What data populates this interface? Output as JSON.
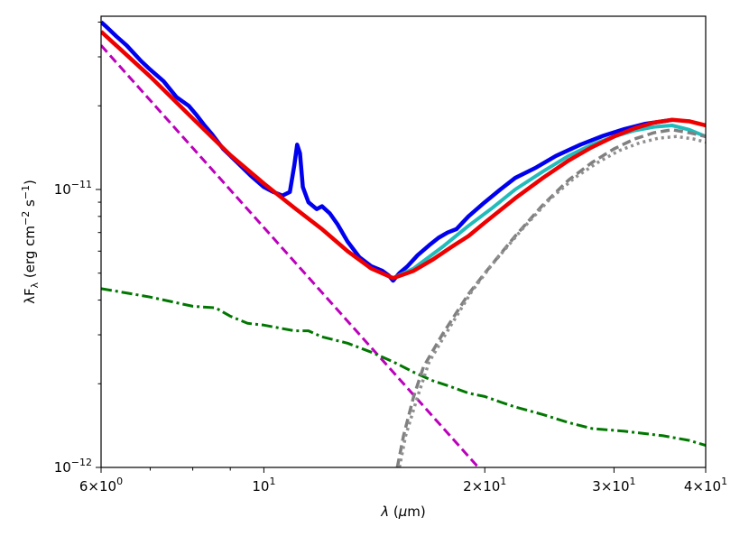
{
  "chart_data": {
    "type": "line",
    "title": "",
    "xlabel": "λ (μm)",
    "ylabel": "λF_λ (erg cm^-2 s^-1)",
    "x_scale": "log",
    "y_scale": "log",
    "xlim": [
      6,
      40
    ],
    "ylim": [
      1e-12,
      4.2e-11
    ],
    "grid": false,
    "legend": "none",
    "x_ticks": [
      {
        "value": 6,
        "mantissa": "6×10",
        "exponent": "0"
      },
      {
        "value": 10,
        "mantissa": "10",
        "exponent": "1"
      },
      {
        "value": 20,
        "mantissa": "2×10",
        "exponent": "1"
      },
      {
        "value": 30,
        "mantissa": "3×10",
        "exponent": "1"
      },
      {
        "value": 40,
        "mantissa": "4×10",
        "exponent": "1"
      }
    ],
    "y_ticks": [
      {
        "value": 1e-12,
        "mantissa": "10",
        "exponent": "−12"
      },
      {
        "value": 1e-11,
        "mantissa": "10",
        "exponent": "−11"
      }
    ],
    "series": [
      {
        "color": "#0000ee",
        "style": "solid",
        "width": 4.5,
        "points": [
          [
            6.0,
            4e-11
          ],
          [
            6.1,
            3.85e-11
          ],
          [
            6.3,
            3.55e-11
          ],
          [
            6.5,
            3.3e-11
          ],
          [
            6.8,
            2.9e-11
          ],
          [
            7.0,
            2.7e-11
          ],
          [
            7.3,
            2.45e-11
          ],
          [
            7.6,
            2.15e-11
          ],
          [
            7.9,
            2e-11
          ],
          [
            8.1,
            1.85e-11
          ],
          [
            8.3,
            1.7e-11
          ],
          [
            8.5,
            1.58e-11
          ],
          [
            8.8,
            1.4e-11
          ],
          [
            9.2,
            1.25e-11
          ],
          [
            9.6,
            1.12e-11
          ],
          [
            10.0,
            1.02e-11
          ],
          [
            10.3,
            9.8e-12
          ],
          [
            10.6,
            9.5e-12
          ],
          [
            10.85,
            9.8e-12
          ],
          [
            11.0,
            1.22e-11
          ],
          [
            11.1,
            1.45e-11
          ],
          [
            11.2,
            1.35e-11
          ],
          [
            11.3,
            1.02e-11
          ],
          [
            11.5,
            9e-12
          ],
          [
            11.8,
            8.5e-12
          ],
          [
            12.0,
            8.7e-12
          ],
          [
            12.3,
            8.2e-12
          ],
          [
            12.6,
            7.5e-12
          ],
          [
            13.0,
            6.5e-12
          ],
          [
            13.5,
            5.7e-12
          ],
          [
            14.0,
            5.3e-12
          ],
          [
            14.5,
            5.1e-12
          ],
          [
            14.8,
            4.9e-12
          ],
          [
            15.0,
            4.7e-12
          ],
          [
            15.3,
            5e-12
          ],
          [
            15.7,
            5.3e-12
          ],
          [
            16.2,
            5.8e-12
          ],
          [
            16.8,
            6.3e-12
          ],
          [
            17.3,
            6.7e-12
          ],
          [
            17.8,
            7e-12
          ],
          [
            18.3,
            7.2e-12
          ],
          [
            19.0,
            8e-12
          ],
          [
            20.0,
            9e-12
          ],
          [
            21.0,
            1e-11
          ],
          [
            22.0,
            1.1e-11
          ],
          [
            23.5,
            1.2e-11
          ],
          [
            25.0,
            1.32e-11
          ],
          [
            27.0,
            1.45e-11
          ],
          [
            29.0,
            1.56e-11
          ],
          [
            31.0,
            1.65e-11
          ],
          [
            33.0,
            1.72e-11
          ],
          [
            35.0,
            1.76e-11
          ],
          [
            36.0,
            1.78e-11
          ]
        ]
      },
      {
        "color": "#22bbbb",
        "style": "solid",
        "width": 4,
        "points": [
          [
            15.0,
            4.8e-12
          ],
          [
            16.0,
            5.2e-12
          ],
          [
            17.5,
            6.2e-12
          ],
          [
            19.0,
            7.4e-12
          ],
          [
            20.5,
            8.6e-12
          ],
          [
            22.0,
            1e-11
          ],
          [
            24.0,
            1.16e-11
          ],
          [
            26.0,
            1.32e-11
          ],
          [
            28.0,
            1.45e-11
          ],
          [
            30.0,
            1.55e-11
          ],
          [
            32.0,
            1.63e-11
          ],
          [
            34.0,
            1.68e-11
          ],
          [
            36.0,
            1.7e-11
          ],
          [
            38.0,
            1.64e-11
          ],
          [
            40.0,
            1.55e-11
          ]
        ]
      },
      {
        "color": "#ee0000",
        "style": "solid",
        "width": 4.5,
        "points": [
          [
            6.0,
            3.7e-11
          ],
          [
            7.0,
            2.55e-11
          ],
          [
            8.0,
            1.8e-11
          ],
          [
            9.0,
            1.33e-11
          ],
          [
            10.0,
            1.05e-11
          ],
          [
            11.0,
            8.6e-12
          ],
          [
            12.0,
            7.2e-12
          ],
          [
            13.0,
            6e-12
          ],
          [
            14.0,
            5.2e-12
          ],
          [
            15.0,
            4.8e-12
          ],
          [
            16.0,
            5.1e-12
          ],
          [
            17.0,
            5.6e-12
          ],
          [
            18.0,
            6.2e-12
          ],
          [
            19.0,
            6.8e-12
          ],
          [
            20.0,
            7.6e-12
          ],
          [
            22.0,
            9.3e-12
          ],
          [
            24.0,
            1.1e-11
          ],
          [
            26.0,
            1.27e-11
          ],
          [
            28.0,
            1.42e-11
          ],
          [
            30.0,
            1.55e-11
          ],
          [
            32.0,
            1.66e-11
          ],
          [
            34.0,
            1.74e-11
          ],
          [
            36.0,
            1.78e-11
          ],
          [
            38.0,
            1.76e-11
          ],
          [
            40.0,
            1.7e-11
          ]
        ]
      },
      {
        "color": "#bb00bb",
        "style": "dashed",
        "width": 3,
        "points": [
          [
            6.0,
            3.3e-11
          ],
          [
            19.6,
            1e-12
          ]
        ]
      },
      {
        "color": "#007700",
        "style": "dashdot",
        "width": 3,
        "points": [
          [
            6.0,
            4.4e-12
          ],
          [
            7.0,
            4.1e-12
          ],
          [
            8.0,
            3.8e-12
          ],
          [
            8.6,
            3.75e-12
          ],
          [
            9.0,
            3.5e-12
          ],
          [
            9.5,
            3.3e-12
          ],
          [
            10.0,
            3.25e-12
          ],
          [
            11.0,
            3.1e-12
          ],
          [
            11.5,
            3.1e-12
          ],
          [
            12.0,
            2.95e-12
          ],
          [
            13.0,
            2.8e-12
          ],
          [
            14.0,
            2.6e-12
          ],
          [
            15.0,
            2.4e-12
          ],
          [
            16.0,
            2.2e-12
          ],
          [
            17.0,
            2.05e-12
          ],
          [
            18.0,
            1.95e-12
          ],
          [
            19.0,
            1.85e-12
          ],
          [
            20.0,
            1.8e-12
          ],
          [
            21.0,
            1.72e-12
          ],
          [
            22.0,
            1.65e-12
          ],
          [
            24.0,
            1.55e-12
          ],
          [
            26.0,
            1.45e-12
          ],
          [
            28.0,
            1.38e-12
          ],
          [
            31.0,
            1.35e-12
          ],
          [
            35.0,
            1.3e-12
          ],
          [
            38.0,
            1.25e-12
          ],
          [
            40.0,
            1.2e-12
          ]
        ]
      },
      {
        "color": "#808080",
        "style": "dashed",
        "width": 3.5,
        "points": [
          [
            15.2,
            1e-12
          ],
          [
            15.5,
            1.3e-12
          ],
          [
            16.0,
            1.8e-12
          ],
          [
            16.5,
            2.3e-12
          ],
          [
            17.5,
            3e-12
          ],
          [
            19.0,
            4.2e-12
          ],
          [
            20.0,
            5e-12
          ],
          [
            22.0,
            6.8e-12
          ],
          [
            24.0,
            8.8e-12
          ],
          [
            26.0,
            1.08e-11
          ],
          [
            28.0,
            1.25e-11
          ],
          [
            30.0,
            1.4e-11
          ],
          [
            32.0,
            1.52e-11
          ],
          [
            34.0,
            1.6e-11
          ],
          [
            36.0,
            1.64e-11
          ],
          [
            38.0,
            1.6e-11
          ],
          [
            40.0,
            1.55e-11
          ]
        ]
      },
      {
        "color": "#909090",
        "style": "dotted",
        "width": 3.5,
        "points": [
          [
            15.3,
            1e-12
          ],
          [
            15.6,
            1.3e-12
          ],
          [
            16.2,
            1.8e-12
          ],
          [
            16.8,
            2.4e-12
          ],
          [
            17.8,
            3.1e-12
          ],
          [
            19.2,
            4.3e-12
          ],
          [
            20.5,
            5.4e-12
          ],
          [
            22.5,
            7.2e-12
          ],
          [
            24.5,
            9.2e-12
          ],
          [
            26.5,
            1.1e-11
          ],
          [
            28.5,
            1.25e-11
          ],
          [
            30.5,
            1.38e-11
          ],
          [
            32.5,
            1.47e-11
          ],
          [
            34.5,
            1.53e-11
          ],
          [
            36.5,
            1.55e-11
          ],
          [
            38.5,
            1.52e-11
          ],
          [
            40.0,
            1.48e-11
          ]
        ]
      }
    ]
  }
}
